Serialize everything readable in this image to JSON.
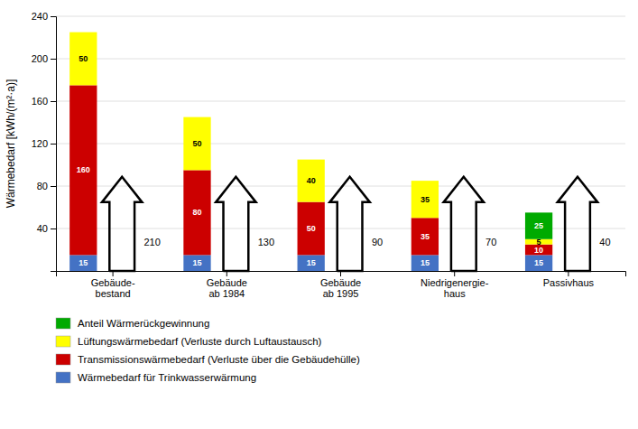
{
  "chart_data": {
    "type": "bar",
    "stacked": true,
    "data_labels": true,
    "grid": true,
    "categories": [
      "Gebäude-\nbestand",
      "Gebäude\nab 1984",
      "Gebäude\nab 1995",
      "Niedrigenergie-\nhaus",
      "Passivhaus"
    ],
    "series": [
      {
        "name": "Wärmebedarf für Trinkwasserwärmung",
        "color": "#4472C4",
        "values": [
          15,
          15,
          15,
          15,
          15
        ]
      },
      {
        "name": "Transmissionswärmebedarf (Verluste über die Gebäudehülle)",
        "color": "#CC0000",
        "values": [
          160,
          80,
          50,
          35,
          10
        ]
      },
      {
        "name": "Lüftungswärmebedarf (Verluste durch Luftaustausch)",
        "color": "#FFFF00",
        "values": [
          50,
          50,
          40,
          35,
          5
        ]
      },
      {
        "name": "Anteil Wärmerückgewinnung",
        "color": "#00AA00",
        "values": [
          0,
          0,
          0,
          0,
          25
        ]
      }
    ],
    "totals": [
      210,
      130,
      90,
      70,
      40
    ],
    "ylabel": "Wärmebedarf [kWh/(m²·a)]",
    "ylim": [
      0,
      240
    ],
    "yticks": [
      40,
      80,
      120,
      160,
      200,
      240
    ]
  }
}
